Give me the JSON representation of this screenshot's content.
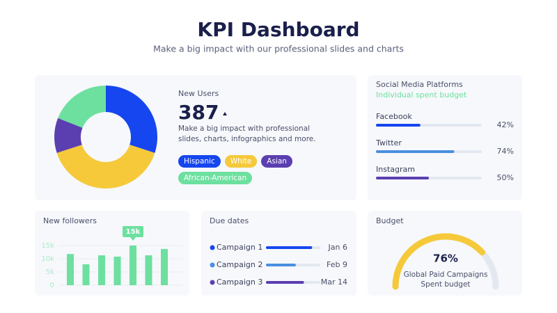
{
  "header": {
    "title": "KPI Dashboard",
    "subtitle": "Make a big impact with our professional slides and charts"
  },
  "new_users": {
    "label": "New Users",
    "value": 387,
    "description": "Make a big impact with professional slides, charts, infographics and more."
  },
  "chart_data": [
    {
      "type": "donut",
      "categories": [
        "Hispanic",
        "White",
        "Asian",
        "African-American"
      ],
      "values": [
        30,
        40,
        11,
        19
      ],
      "colors": [
        "#1646f0",
        "#f5c93a",
        "#5b3fb0",
        "#6de0a0"
      ]
    },
    {
      "type": "progress",
      "title": "Social Media Platforms",
      "subtitle": "Individual spent budget",
      "categories": [
        "Facebook",
        "Twitter",
        "Instagram"
      ],
      "values": [
        42,
        74,
        50
      ],
      "value_labels": [
        "42%",
        "74%",
        "50%"
      ],
      "colors": [
        "#1646f0",
        "#4a8fe0",
        "#5b3fb0"
      ],
      "xlim": [
        0,
        100
      ]
    },
    {
      "type": "bar",
      "title": "New followers",
      "categories": [
        null,
        null,
        null,
        null,
        null,
        null,
        null
      ],
      "values": [
        11800,
        7900,
        11300,
        10800,
        15000,
        11300,
        13700
      ],
      "value_labels": [
        null,
        null,
        null,
        null,
        "15k",
        null,
        null
      ],
      "color": "#6de0a0",
      "ylim": [
        0,
        16000
      ],
      "yticks": [
        {
          "value": 0,
          "label": "0"
        },
        {
          "value": 5000,
          "label": "5k"
        },
        {
          "value": 10000,
          "label": "10k"
        },
        {
          "value": 15000,
          "label": "15k"
        }
      ],
      "grid": true
    },
    {
      "type": "schedule",
      "title": "Due dates",
      "categories": [
        "Campaign 1",
        "Campaign 2",
        "Campaign 3"
      ],
      "values": [
        85,
        55,
        70
      ],
      "dates": [
        "Jan 6",
        "Feb 9",
        "Mar 14"
      ],
      "colors": [
        "#1646f0",
        "#4a8fe0",
        "#5b3fb0"
      ],
      "xlim": [
        0,
        100
      ]
    },
    {
      "type": "gauge",
      "title": "Budget",
      "value": 76,
      "value_label": "76%",
      "label_lines": [
        "Global Paid Campaigns",
        "Spent budget"
      ],
      "ylim": [
        0,
        100
      ],
      "color": "#f5c93a"
    }
  ]
}
